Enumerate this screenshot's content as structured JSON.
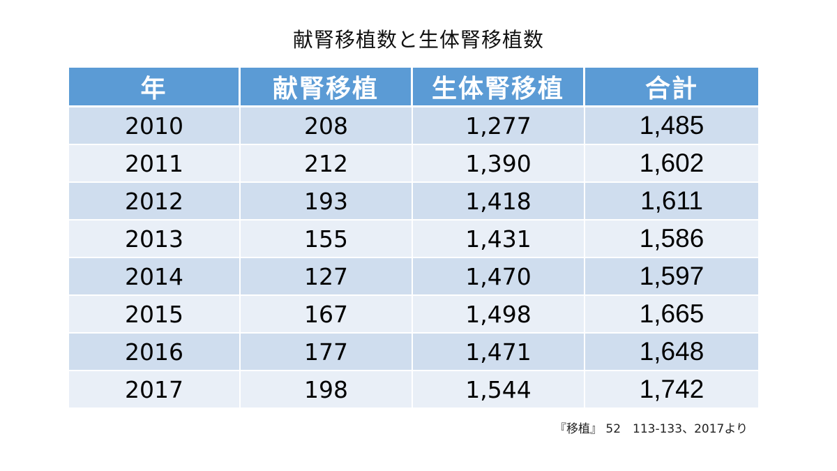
{
  "title": "献腎移植数と生体腎移植数",
  "table": {
    "headers": [
      "年",
      "献腎移植",
      "生体腎移植",
      "合計"
    ],
    "rows": [
      [
        "2010",
        "208",
        "1,277",
        "1,485"
      ],
      [
        "2011",
        "212",
        "1,390",
        "1,602"
      ],
      [
        "2012",
        "193",
        "1,418",
        "1,611"
      ],
      [
        "2013",
        "155",
        "1,431",
        "1,586"
      ],
      [
        "2014",
        "127",
        "1,470",
        "1,597"
      ],
      [
        "2015",
        "167",
        "1,498",
        "1,665"
      ],
      [
        "2016",
        "177",
        "1,471",
        "1,648"
      ],
      [
        "2017",
        "198",
        "1,544",
        "1,742"
      ]
    ]
  },
  "source": "『移植』 52　113-133、2017より",
  "colors": {
    "header_bg": "#5b9bd5",
    "row_dark": "#cfddee",
    "row_light": "#e9eff7"
  }
}
